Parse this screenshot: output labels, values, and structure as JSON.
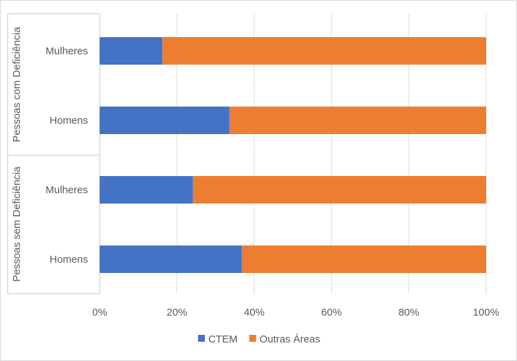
{
  "chart_data": {
    "type": "bar",
    "orientation": "horizontal",
    "stacked": "100%",
    "groups": [
      {
        "label": "Pessoas com Deficiência",
        "categories": [
          "Mulheres",
          "Homens"
        ]
      },
      {
        "label": "Pessoas sem Deficiência",
        "categories": [
          "Mulheres",
          "Homens"
        ]
      }
    ],
    "series": [
      {
        "name": "CTEM",
        "color": "#4472C4",
        "values": [
          16.2,
          33.6,
          24.1,
          36.8
        ]
      },
      {
        "name": "Outras Áreas",
        "color": "#ED7D31",
        "values": [
          83.8,
          66.4,
          75.9,
          63.2
        ]
      }
    ],
    "xlim": [
      0,
      100
    ],
    "xticks": [
      "0%",
      "20%",
      "40%",
      "60%",
      "80%",
      "100%"
    ],
    "grid": true,
    "legend_position": "bottom"
  }
}
